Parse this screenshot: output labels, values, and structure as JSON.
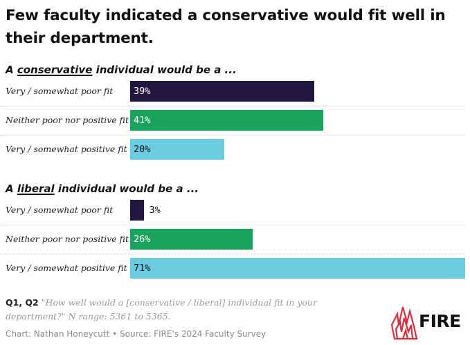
{
  "title": "Few faculty indicated a conservative would fit well in their department.",
  "sections": [
    {
      "heading_pre": "A ",
      "heading_em": "conservative",
      "heading_post": " individual would be a ..."
    },
    {
      "heading_pre": "A ",
      "heading_em": "liberal",
      "heading_post": " individual would be a ..."
    }
  ],
  "colors": {
    "poor": "#23173f",
    "neither": "#1aa35d",
    "positive": "#6bcbe0",
    "text_dark": "#111111",
    "text_light": "#ffffff"
  },
  "chart_data": {
    "type": "bar",
    "orientation": "horizontal",
    "title": "Few faculty indicated a conservative would fit well in their department.",
    "categories": [
      "Very / somewhat poor fit",
      "Neither poor nor positive fit",
      "Very / somewhat positive fit"
    ],
    "series": [
      {
        "name": "A conservative individual would be a ...",
        "values": [
          39,
          41,
          20
        ],
        "labels": [
          "39%",
          "41%",
          "20%"
        ]
      },
      {
        "name": "A liberal individual would be a ...",
        "values": [
          3,
          26,
          71
        ],
        "labels": [
          "3%",
          "26%",
          "71%"
        ]
      }
    ],
    "xlim": [
      0,
      71
    ],
    "unit": "%"
  },
  "footnote": {
    "questions": "Q1, Q2",
    "text": "\"How well would a [conservative / liberal] individual fit in your department?\" N range: 5361 to 5365."
  },
  "credit": "Chart: Nathan Honeycutt • Source: FIRE's 2024 Faculty Survey",
  "logo": {
    "text": "FIRE",
    "icon": "fire-flame-logo-icon"
  }
}
